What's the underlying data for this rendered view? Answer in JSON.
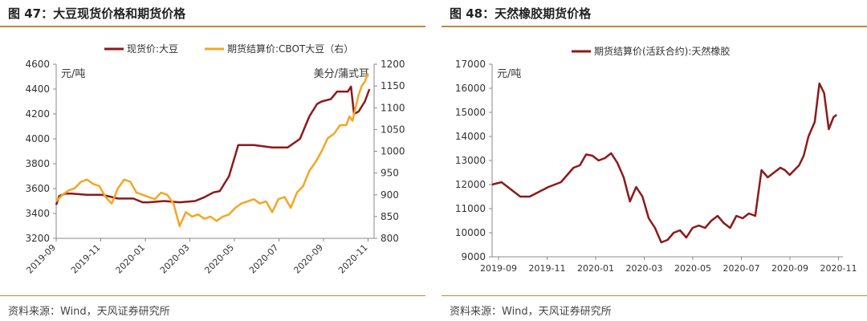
{
  "left": {
    "title": "图 47：大豆现货价格和期货价格",
    "source": "资料来源：Wind，天风证券研究所"
  },
  "right": {
    "title": "图 48：天然橡胶期货价格",
    "source": "资料来源：Wind，天风证券研究所"
  },
  "colors": {
    "dark_red": "#8b1a1a",
    "orange": "#f5a623",
    "rule": "#c8853a"
  },
  "chart_data": [
    {
      "type": "line",
      "title": "图 47：大豆现货价格和期货价格",
      "ylabel": "元/吨",
      "y2label": "美分/蒲式耳",
      "ylim": [
        3200,
        4600
      ],
      "y2lim": [
        800,
        1200
      ],
      "yticks": [
        "4600",
        "4400",
        "4200",
        "4000",
        "3800",
        "3600",
        "3400",
        "3200"
      ],
      "y2ticks": [
        "1200",
        "1150",
        "1100",
        "1050",
        "1000",
        "950",
        "900",
        "850",
        "800"
      ],
      "xticks": [
        "2019-09",
        "2019-11",
        "2020-01",
        "2020-03",
        "2020-05",
        "2020-07",
        "2020-09",
        "2020-11"
      ],
      "legend": [
        "现货价:大豆",
        "期货结算价:CBOT大豆（右）"
      ],
      "series": [
        {
          "name": "现货价:大豆",
          "axis": "left",
          "color": "#8b1a1a",
          "x": [
            0,
            0.1,
            0.3,
            0.5,
            1,
            1.5,
            2,
            2.5,
            2.8,
            3,
            3.5,
            4,
            4.5,
            4.8,
            5.1,
            5.3,
            5.6,
            5.9,
            6,
            6.4,
            7,
            7.5,
            7.9,
            8.2,
            8.45,
            8.6,
            8.9,
            9.1,
            9.3,
            9.45,
            9.55,
            9.65,
            9.8,
            10,
            10.15
          ],
          "y": [
            3470,
            3540,
            3560,
            3560,
            3550,
            3550,
            3520,
            3520,
            3490,
            3490,
            3500,
            3490,
            3500,
            3530,
            3570,
            3580,
            3700,
            3950,
            3950,
            3950,
            3930,
            3930,
            4000,
            4180,
            4280,
            4300,
            4320,
            4380,
            4380,
            4380,
            4420,
            4200,
            4220,
            4300,
            4400
          ]
        },
        {
          "name": "期货结算价:CBOT大豆（右）",
          "axis": "right",
          "color": "#f5a623",
          "x": [
            0,
            0.2,
            0.4,
            0.6,
            0.8,
            1,
            1.2,
            1.4,
            1.6,
            1.8,
            2,
            2.2,
            2.4,
            2.6,
            2.8,
            3,
            3.2,
            3.4,
            3.6,
            3.8,
            4,
            4.2,
            4.4,
            4.6,
            4.8,
            5,
            5.2,
            5.4,
            5.6,
            5.8,
            6,
            6.2,
            6.4,
            6.6,
            6.8,
            7,
            7.2,
            7.4,
            7.6,
            7.8,
            8,
            8.2,
            8.4,
            8.6,
            8.8,
            9,
            9.2,
            9.4,
            9.5,
            9.6,
            9.7,
            9.8,
            9.9,
            10,
            10.1
          ],
          "y": [
            885,
            900,
            910,
            915,
            930,
            935,
            925,
            920,
            895,
            880,
            915,
            935,
            930,
            905,
            900,
            895,
            890,
            905,
            900,
            880,
            828,
            860,
            850,
            855,
            845,
            850,
            840,
            850,
            855,
            870,
            880,
            885,
            890,
            880,
            885,
            860,
            890,
            895,
            870,
            905,
            920,
            955,
            975,
            1000,
            1030,
            1040,
            1060,
            1060,
            1080,
            1070,
            1100,
            1130,
            1150,
            1160,
            1180
          ]
        }
      ]
    },
    {
      "type": "line",
      "title": "图 48：天然橡胶期货价格",
      "ylabel": "元/吨",
      "ylim": [
        9000,
        17000
      ],
      "yticks": [
        "17000",
        "16000",
        "15000",
        "14000",
        "13000",
        "12000",
        "11000",
        "10000",
        "9000"
      ],
      "xticks": [
        "2019-09",
        "2019-11",
        "2020-01",
        "2020-03",
        "2020-05",
        "2020-07",
        "2020-09",
        "2020-11"
      ],
      "legend": [
        "期货结算价(活跃合约):天然橡胶"
      ],
      "series": [
        {
          "name": "期货结算价(活跃合约):天然橡胶",
          "color": "#8b1a1a",
          "x": [
            0,
            0.3,
            0.6,
            0.9,
            1.2,
            1.5,
            1.8,
            2.0,
            2.2,
            2.4,
            2.6,
            2.8,
            3.0,
            3.2,
            3.4,
            3.6,
            3.8,
            4.0,
            4.2,
            4.4,
            4.6,
            4.8,
            5.0,
            5.2,
            5.4,
            5.6,
            5.8,
            6.0,
            6.2,
            6.4,
            6.6,
            6.8,
            7.0,
            7.2,
            7.4,
            7.6,
            7.8,
            8.0,
            8.2,
            8.4,
            8.6,
            8.8,
            9.0,
            9.2,
            9.35,
            9.5,
            9.65,
            9.8,
            9.95,
            10.1,
            10.3,
            10.45,
            10.6,
            10.75,
            10.9,
            11.0
          ],
          "y": [
            12000,
            12100,
            11800,
            11500,
            11500,
            11700,
            11900,
            12000,
            12100,
            12400,
            12700,
            12800,
            13250,
            13200,
            13000,
            13100,
            13300,
            12900,
            12300,
            11300,
            11900,
            11500,
            10600,
            10200,
            9600,
            9700,
            10000,
            10100,
            9800,
            10200,
            10300,
            10200,
            10500,
            10700,
            10400,
            10200,
            10700,
            10600,
            10800,
            10700,
            12600,
            12300,
            12500,
            12700,
            12600,
            12400,
            12600,
            12800,
            13200,
            14000,
            14600,
            16200,
            15800,
            14300,
            14800,
            14900
          ]
        }
      ]
    }
  ]
}
